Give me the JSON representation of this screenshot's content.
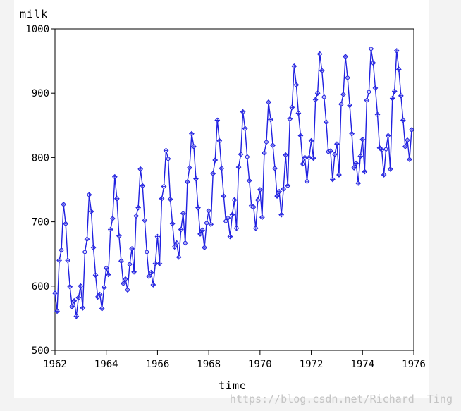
{
  "chart_data": {
    "type": "line",
    "title": "",
    "xlabel": "time",
    "ylabel": "milk",
    "xlim": [
      1962,
      1976
    ],
    "ylim": [
      500,
      1000
    ],
    "x_ticks": [
      "1962",
      "1964",
      "1966",
      "1968",
      "1970",
      "1972",
      "1974",
      "1976"
    ],
    "y_ticks": [
      "500",
      "600",
      "700",
      "800",
      "900",
      "1000"
    ],
    "grid": false,
    "marker": "diamond-cross",
    "series": [
      {
        "color": "#2020e0",
        "x_start": 1962.0,
        "x_step": 0.0833333,
        "values": [
          589,
          561,
          640,
          656,
          727,
          697,
          640,
          599,
          568,
          577,
          553,
          582,
          600,
          566,
          653,
          673,
          742,
          716,
          660,
          617,
          583,
          587,
          565,
          598,
          628,
          618,
          688,
          705,
          770,
          736,
          678,
          639,
          604,
          611,
          594,
          634,
          658,
          622,
          709,
          722,
          782,
          756,
          702,
          653,
          615,
          621,
          602,
          635,
          677,
          635,
          736,
          755,
          811,
          798,
          735,
          697,
          661,
          667,
          645,
          688,
          713,
          667,
          762,
          784,
          837,
          817,
          767,
          722,
          681,
          687,
          660,
          698,
          717,
          696,
          775,
          796,
          858,
          826,
          783,
          740,
          701,
          706,
          677,
          711,
          734,
          690,
          785,
          805,
          871,
          845,
          801,
          764,
          725,
          723,
          690,
          734,
          750,
          707,
          807,
          824,
          886,
          859,
          819,
          783,
          740,
          747,
          711,
          751,
          804,
          756,
          860,
          878,
          942,
          913,
          869,
          834,
          790,
          800,
          763,
          800,
          826,
          799,
          890,
          900,
          961,
          935,
          894,
          855,
          809,
          810,
          766,
          805,
          821,
          773,
          883,
          898,
          957,
          924,
          881,
          837,
          784,
          791,
          760,
          802,
          828,
          778,
          889,
          902,
          969,
          947,
          908,
          867,
          815,
          812,
          773,
          813,
          834,
          782,
          892,
          903,
          966,
          937,
          896,
          858,
          817,
          827,
          797,
          843
        ]
      }
    ]
  },
  "watermark": "https://blog.csdn.net/Richard__Ting"
}
